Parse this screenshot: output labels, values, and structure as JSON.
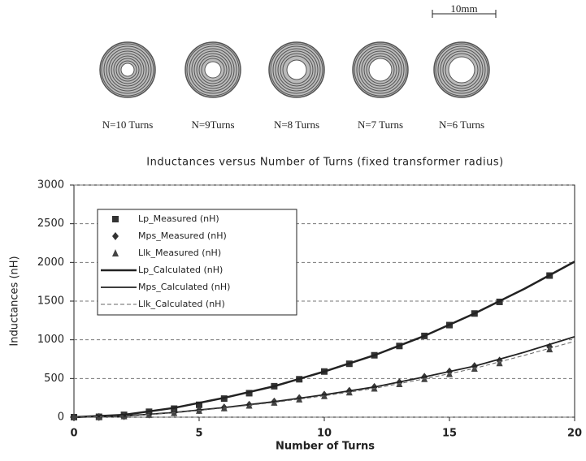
{
  "figure": {
    "scale_label": "10mm",
    "coil_labels": [
      "N=10 Turns",
      "N=9Turns",
      "N=8 Turns",
      "N=7 Turns",
      "N=6 Turns"
    ]
  },
  "chart_data": {
    "type": "line",
    "title": "Inductances versus Number of Turns  (fixed transformer radius)",
    "xlabel": "Number of Turns",
    "ylabel": "Inductances (nH)",
    "xlim": [
      0,
      20
    ],
    "ylim": [
      0,
      3000
    ],
    "xticks": [
      0,
      5,
      10,
      15,
      20
    ],
    "yticks": [
      0,
      500,
      1000,
      1500,
      2000,
      2500,
      3000
    ],
    "grid": true,
    "legend": "upper-left",
    "series": [
      {
        "name": "Lp_Measured (nH)",
        "color": "#333333",
        "marker": "square",
        "x": [
          0,
          1,
          2,
          3,
          4,
          5,
          6,
          7,
          8,
          9,
          10,
          11,
          12,
          13,
          14,
          15,
          16,
          17,
          19
        ],
        "values": [
          0,
          5,
          30,
          70,
          110,
          160,
          240,
          310,
          400,
          490,
          590,
          690,
          800,
          920,
          1050,
          1190,
          1340,
          1490,
          1830
        ]
      },
      {
        "name": "Mps_Measured (nH)",
        "color": "#333333",
        "marker": "diamond",
        "x": [
          0,
          1,
          2,
          3,
          4,
          5,
          6,
          7,
          8,
          9,
          10,
          11,
          12,
          13,
          14,
          15,
          16,
          17,
          19
        ],
        "values": [
          0,
          3,
          15,
          35,
          60,
          90,
          125,
          160,
          200,
          245,
          290,
          340,
          390,
          450,
          520,
          590,
          660,
          730,
          910
        ]
      },
      {
        "name": "Llk_Measured (nH)",
        "color": "#444444",
        "marker": "triangle",
        "x": [
          0,
          1,
          2,
          3,
          4,
          5,
          6,
          7,
          8,
          9,
          10,
          11,
          12,
          13,
          14,
          15,
          16,
          17,
          19
        ],
        "values": [
          0,
          3,
          14,
          33,
          57,
          85,
          118,
          152,
          190,
          232,
          276,
          323,
          372,
          430,
          495,
          560,
          630,
          700,
          880
        ]
      },
      {
        "name": "Lp_Calculated (nH)",
        "color": "#222222",
        "dash": "solid",
        "width": 2.5,
        "x": [
          0,
          2,
          4,
          6,
          8,
          10,
          12,
          14,
          16,
          18,
          20
        ],
        "values": [
          0,
          30,
          120,
          250,
          400,
          590,
          800,
          1050,
          1340,
          1660,
          2010
        ]
      },
      {
        "name": "Mps_Calculated (nH)",
        "color": "#222222",
        "dash": "solid",
        "width": 1.8,
        "x": [
          0,
          2,
          4,
          6,
          8,
          10,
          12,
          14,
          16,
          18,
          20
        ],
        "values": [
          0,
          15,
          60,
          125,
          200,
          290,
          390,
          520,
          660,
          840,
          1040
        ]
      },
      {
        "name": "Llk_Calculated (nH)",
        "color": "#666666",
        "dash": "dashed",
        "width": 1,
        "x": [
          0,
          2,
          4,
          6,
          8,
          10,
          12,
          14,
          16,
          18,
          20
        ],
        "values": [
          0,
          14,
          57,
          118,
          190,
          276,
          372,
          495,
          630,
          800,
          980
        ]
      }
    ]
  }
}
